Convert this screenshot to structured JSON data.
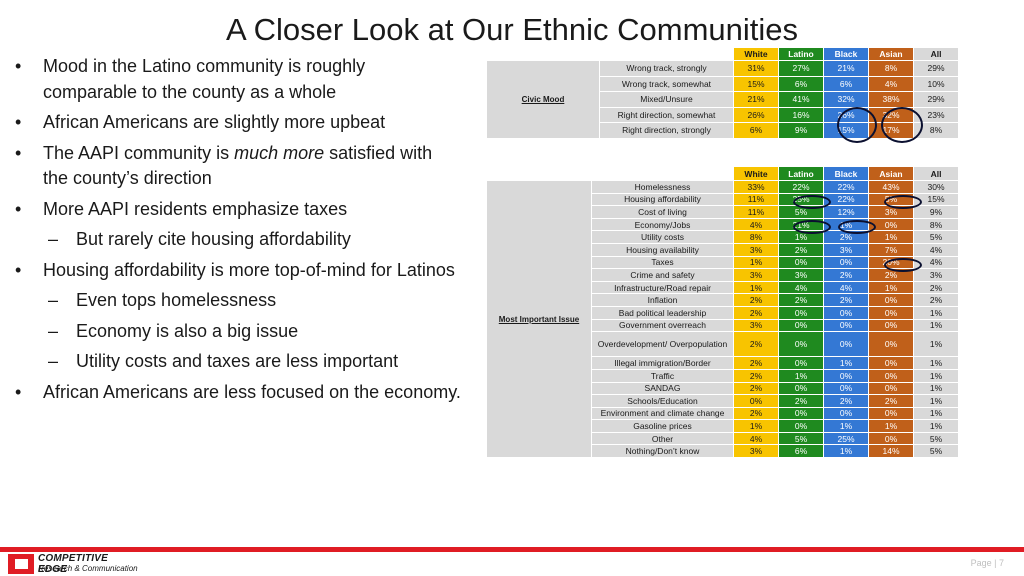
{
  "title": "A Closer Look at Our Ethnic Communities",
  "bullets": [
    {
      "level": 1,
      "parts": [
        "Mood in the Latino community is roughly comparable to the county as a whole"
      ]
    },
    {
      "level": 1,
      "parts": [
        "African Americans are slightly more upbeat"
      ]
    },
    {
      "level": 1,
      "parts": [
        "The AAPI community is ",
        "much more",
        " satisfied with the county’s direction"
      ]
    },
    {
      "level": 1,
      "parts": [
        "More AAPI residents emphasize taxes"
      ]
    },
    {
      "level": 2,
      "parts": [
        "But rarely cite housing affordability"
      ]
    },
    {
      "level": 1,
      "parts": [
        "Housing affordability is more top-of-mind for Latinos"
      ]
    },
    {
      "level": 2,
      "parts": [
        "Even tops homelessness"
      ]
    },
    {
      "level": 2,
      "parts": [
        "Economy is also a big issue"
      ]
    },
    {
      "level": 2,
      "parts": [
        "Utility costs and taxes are less important"
      ]
    },
    {
      "level": 1,
      "parts": [
        "African Americans are less focused on the economy."
      ]
    }
  ],
  "columns": [
    "White",
    "Latino",
    "Black",
    "Asian",
    "All"
  ],
  "civic_mood": {
    "category": "Civic Mood",
    "rows": [
      {
        "label": "Wrong track, strongly",
        "values": [
          "31%",
          "27%",
          "21%",
          "8%",
          "29%"
        ]
      },
      {
        "label": "Wrong track, somewhat",
        "values": [
          "15%",
          "6%",
          "6%",
          "4%",
          "10%"
        ]
      },
      {
        "label": "Mixed/Unsure",
        "values": [
          "21%",
          "41%",
          "32%",
          "38%",
          "29%"
        ]
      },
      {
        "label": "Right direction, somewhat",
        "values": [
          "26%",
          "16%",
          "26%",
          "32%",
          "23%"
        ]
      },
      {
        "label": "Right direction, strongly",
        "values": [
          "6%",
          "9%",
          "15%",
          "17%",
          "8%"
        ]
      }
    ]
  },
  "important_issue": {
    "category": "Most Important Issue",
    "rows": [
      {
        "label": "Homelessness",
        "values": [
          "33%",
          "22%",
          "22%",
          "43%",
          "30%"
        ]
      },
      {
        "label": "Housing affordability",
        "values": [
          "11%",
          "25%",
          "22%",
          "5%",
          "15%"
        ]
      },
      {
        "label": "Cost of living",
        "values": [
          "11%",
          "5%",
          "12%",
          "3%",
          "9%"
        ]
      },
      {
        "label": "Economy/Jobs",
        "values": [
          "4%",
          "21%",
          "1%",
          "0%",
          "8%"
        ]
      },
      {
        "label": "Utility costs",
        "values": [
          "8%",
          "1%",
          "2%",
          "1%",
          "5%"
        ]
      },
      {
        "label": "Housing availability",
        "values": [
          "3%",
          "2%",
          "3%",
          "7%",
          "4%"
        ]
      },
      {
        "label": "Taxes",
        "values": [
          "1%",
          "0%",
          "0%",
          "20%",
          "4%"
        ]
      },
      {
        "label": "Crime and safety",
        "values": [
          "3%",
          "3%",
          "2%",
          "2%",
          "3%"
        ]
      },
      {
        "label": "Infrastructure/Road repair",
        "values": [
          "1%",
          "4%",
          "4%",
          "1%",
          "2%"
        ]
      },
      {
        "label": "Inflation",
        "values": [
          "2%",
          "2%",
          "2%",
          "0%",
          "2%"
        ]
      },
      {
        "label": "Bad political leadership",
        "values": [
          "2%",
          "0%",
          "0%",
          "0%",
          "1%"
        ]
      },
      {
        "label": "Government overreach",
        "values": [
          "3%",
          "0%",
          "0%",
          "0%",
          "1%"
        ]
      },
      {
        "label": "Overdevelopment/ Overpopulation",
        "values": [
          "2%",
          "0%",
          "0%",
          "0%",
          "1%"
        ],
        "tall": true
      },
      {
        "label": "Illegal immigration/Border",
        "values": [
          "2%",
          "0%",
          "1%",
          "0%",
          "1%"
        ]
      },
      {
        "label": "Traffic",
        "values": [
          "2%",
          "1%",
          "0%",
          "0%",
          "1%"
        ]
      },
      {
        "label": "SANDAG",
        "values": [
          "2%",
          "0%",
          "0%",
          "0%",
          "1%"
        ]
      },
      {
        "label": "Schools/Education",
        "values": [
          "0%",
          "2%",
          "2%",
          "2%",
          "1%"
        ]
      },
      {
        "label": "Environment and climate change",
        "values": [
          "2%",
          "0%",
          "0%",
          "0%",
          "1%"
        ]
      },
      {
        "label": "Gasoline prices",
        "values": [
          "1%",
          "0%",
          "1%",
          "1%",
          "1%"
        ]
      },
      {
        "label": "Other",
        "values": [
          "4%",
          "5%",
          "25%",
          "0%",
          "5%"
        ]
      },
      {
        "label": "Nothing/Don’t know",
        "values": [
          "3%",
          "6%",
          "1%",
          "14%",
          "5%"
        ]
      }
    ]
  },
  "footer": {
    "logo_name": "COMPETITIVE EDGE",
    "logo_sub": "Research & Communication",
    "page": "Page | 7"
  },
  "colors": {
    "white": "#f8c400",
    "latino": "#1f8a1f",
    "black": "#3478d4",
    "asian": "#c0601a",
    "all": "#d9d9d9",
    "accent_red": "#e01c24"
  }
}
